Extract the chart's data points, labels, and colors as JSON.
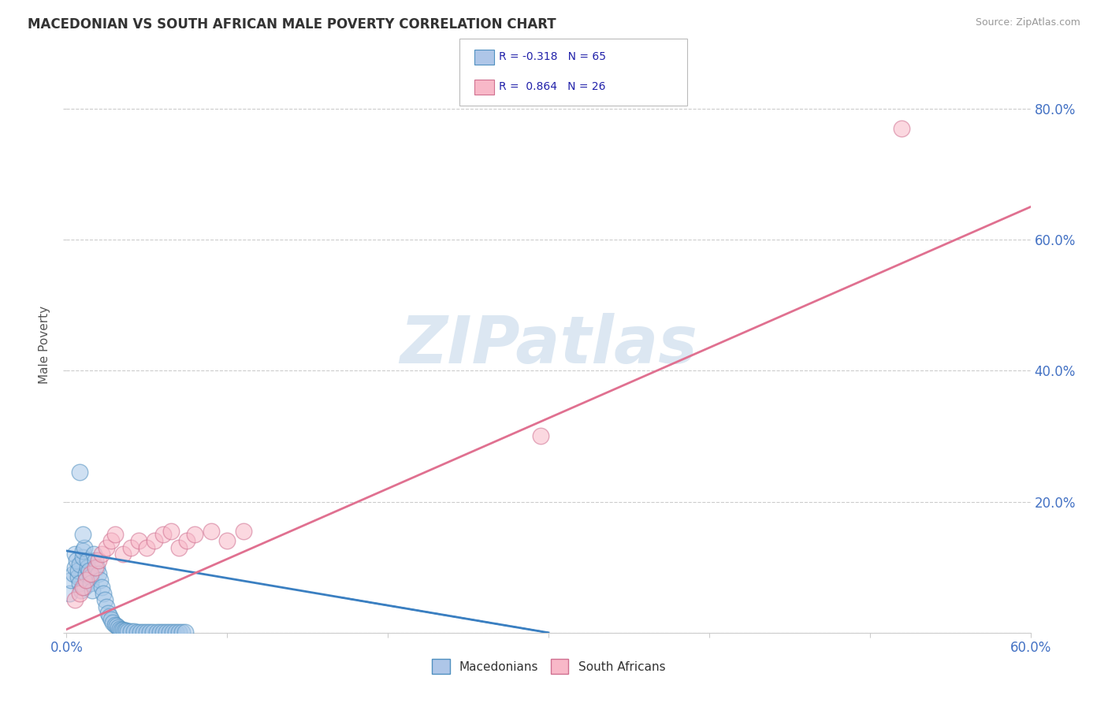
{
  "title": "MACEDONIAN VS SOUTH AFRICAN MALE POVERTY CORRELATION CHART",
  "source_text": "Source: ZipAtlas.com",
  "xlim": [
    0.0,
    0.6
  ],
  "ylim": [
    0.0,
    0.88
  ],
  "watermark": "ZIPatlas",
  "macedonian_color_face": "#a8c8e8",
  "macedonian_color_edge": "#5090c0",
  "south_african_color_face": "#f8b8c8",
  "south_african_color_edge": "#d07090",
  "macedonian_x": [
    0.002,
    0.003,
    0.004,
    0.005,
    0.005,
    0.006,
    0.007,
    0.007,
    0.008,
    0.008,
    0.009,
    0.01,
    0.01,
    0.011,
    0.011,
    0.012,
    0.012,
    0.013,
    0.013,
    0.014,
    0.015,
    0.015,
    0.016,
    0.017,
    0.018,
    0.019,
    0.02,
    0.021,
    0.022,
    0.023,
    0.024,
    0.025,
    0.026,
    0.027,
    0.028,
    0.029,
    0.03,
    0.031,
    0.032,
    0.033,
    0.034,
    0.035,
    0.036,
    0.037,
    0.038,
    0.04,
    0.042,
    0.044,
    0.046,
    0.048,
    0.05,
    0.052,
    0.054,
    0.056,
    0.058,
    0.06,
    0.062,
    0.064,
    0.066,
    0.068,
    0.07,
    0.072,
    0.074,
    0.01,
    0.008
  ],
  "macedonian_y": [
    0.06,
    0.08,
    0.09,
    0.1,
    0.12,
    0.11,
    0.085,
    0.095,
    0.075,
    0.105,
    0.065,
    0.115,
    0.125,
    0.07,
    0.13,
    0.08,
    0.09,
    0.1,
    0.11,
    0.095,
    0.085,
    0.075,
    0.065,
    0.12,
    0.11,
    0.1,
    0.09,
    0.08,
    0.07,
    0.06,
    0.05,
    0.04,
    0.03,
    0.025,
    0.02,
    0.015,
    0.012,
    0.01,
    0.008,
    0.006,
    0.005,
    0.004,
    0.003,
    0.003,
    0.002,
    0.002,
    0.002,
    0.001,
    0.001,
    0.001,
    0.001,
    0.001,
    0.001,
    0.001,
    0.001,
    0.001,
    0.001,
    0.001,
    0.001,
    0.001,
    0.001,
    0.001,
    0.001,
    0.15,
    0.245
  ],
  "south_african_x": [
    0.005,
    0.008,
    0.01,
    0.012,
    0.015,
    0.018,
    0.02,
    0.022,
    0.025,
    0.028,
    0.03,
    0.035,
    0.04,
    0.045,
    0.05,
    0.055,
    0.06,
    0.065,
    0.07,
    0.075,
    0.08,
    0.09,
    0.1,
    0.11,
    0.295,
    0.52
  ],
  "south_african_y": [
    0.05,
    0.06,
    0.07,
    0.08,
    0.09,
    0.1,
    0.11,
    0.12,
    0.13,
    0.14,
    0.15,
    0.12,
    0.13,
    0.14,
    0.13,
    0.14,
    0.15,
    0.155,
    0.13,
    0.14,
    0.15,
    0.155,
    0.14,
    0.155,
    0.3,
    0.77
  ],
  "mac_line_x": [
    0.0,
    0.3
  ],
  "mac_line_y": [
    0.125,
    0.0
  ],
  "sa_line_x": [
    0.0,
    0.6
  ],
  "sa_line_y": [
    0.005,
    0.65
  ],
  "background_color": "#ffffff",
  "grid_color": "#cccccc",
  "title_fontsize": 12,
  "watermark_color": "#c5d8ea",
  "watermark_fontsize": 60,
  "tick_color": "#4472c4",
  "ylabel_color": "#555555",
  "source_color": "#999999"
}
